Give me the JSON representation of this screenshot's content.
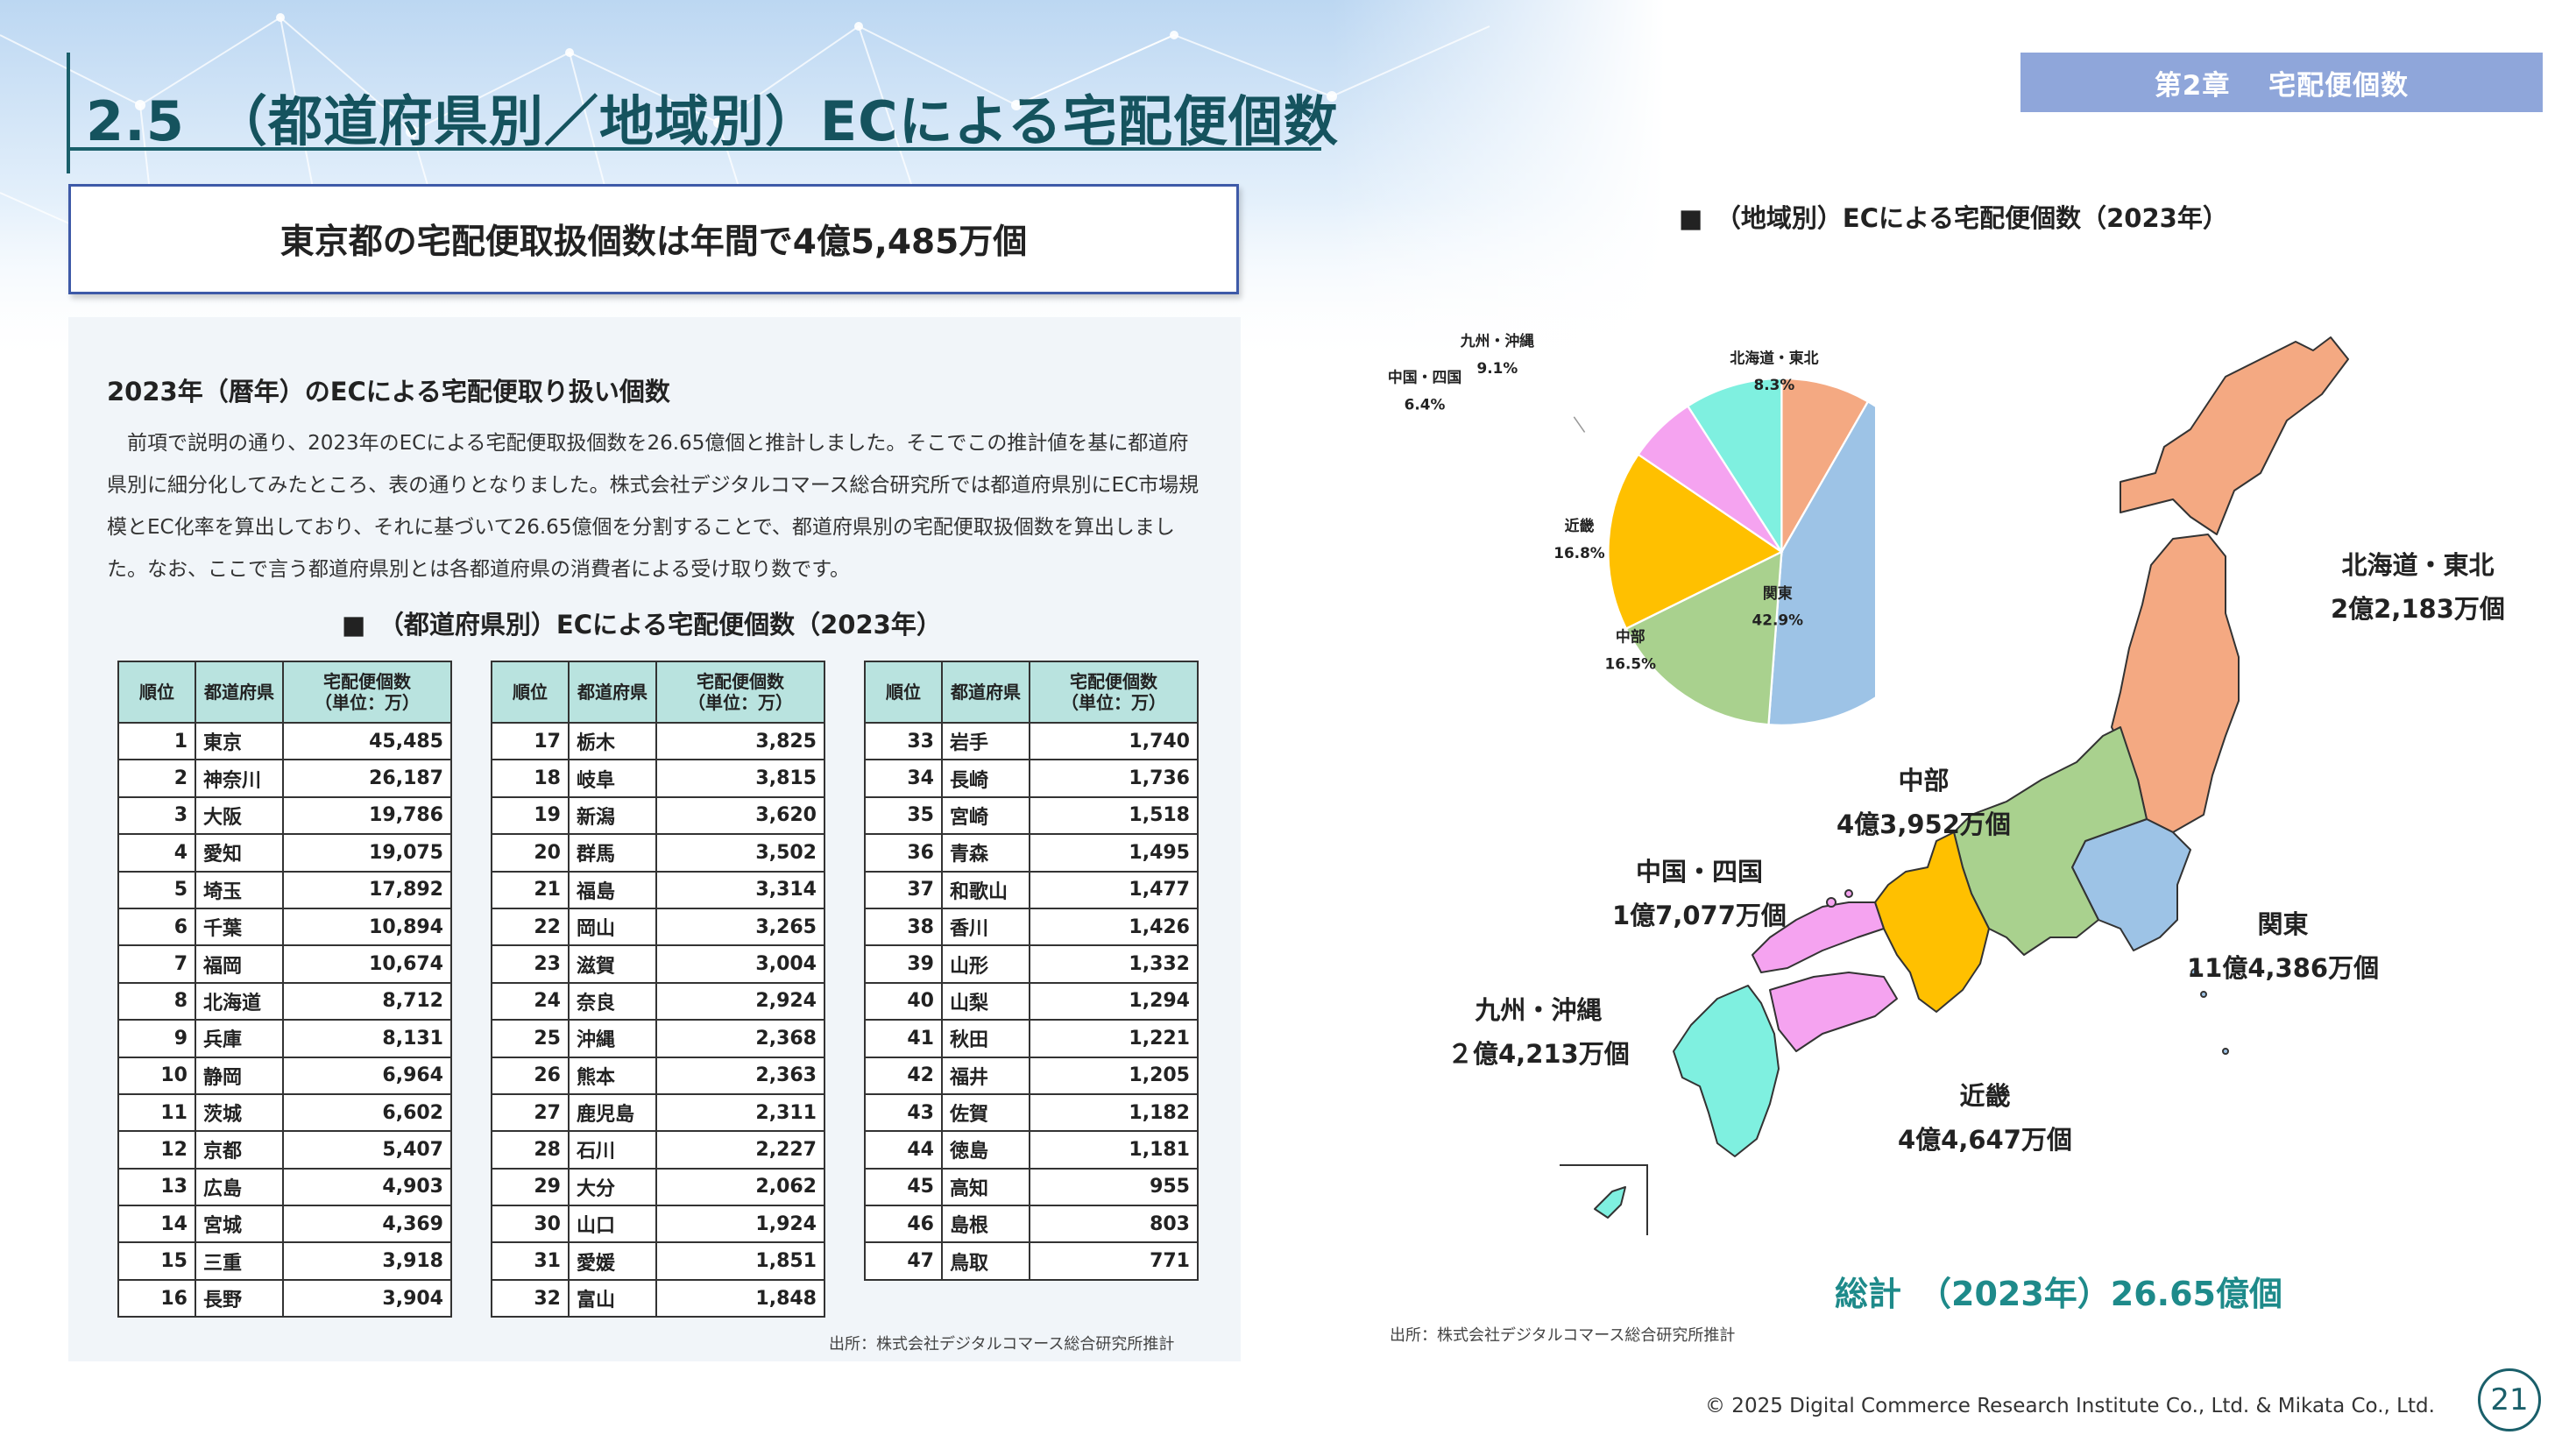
{
  "header": {
    "title": "2.5　（都道府県別／地域別）ECによる宅配便個数",
    "chapter": "第2章　 宅配便個数"
  },
  "headline": "東京都の宅配便取扱個数は年間で4億5,485万個",
  "section": {
    "heading": "2023年（暦年）のECによる宅配便取り扱い個数",
    "body": "前項で説明の通り、2023年のECによる宅配便取扱個数を26.65億個と推計しました。そこでこの推計値を基に都道府県別に細分化してみたところ、表の通りとなりました。株式会社デジタルコマース総合研究所では都道府県別にEC市場規模とEC化率を算出しており、それに基づいて26.65億個を分割することで、都道府県別の宅配便取扱個数を算出しました。なお、ここで言う都道府県別とは各都道府県の消費者による受け取り数です。"
  },
  "table": {
    "caption": "■　（都道府県別）ECによる宅配便個数（2023年）",
    "headers": {
      "rank": "順位",
      "pref": "都道府県",
      "value_1": "宅配便個数",
      "value_2": "（単位：万）"
    },
    "rows": [
      {
        "rank": "1",
        "pref": "東京",
        "value": "45,485"
      },
      {
        "rank": "2",
        "pref": "神奈川",
        "value": "26,187"
      },
      {
        "rank": "3",
        "pref": "大阪",
        "value": "19,786"
      },
      {
        "rank": "4",
        "pref": "愛知",
        "value": "19,075"
      },
      {
        "rank": "5",
        "pref": "埼玉",
        "value": "17,892"
      },
      {
        "rank": "6",
        "pref": "千葉",
        "value": "10,894"
      },
      {
        "rank": "7",
        "pref": "福岡",
        "value": "10,674"
      },
      {
        "rank": "8",
        "pref": "北海道",
        "value": "8,712"
      },
      {
        "rank": "9",
        "pref": "兵庫",
        "value": "8,131"
      },
      {
        "rank": "10",
        "pref": "静岡",
        "value": "6,964"
      },
      {
        "rank": "11",
        "pref": "茨城",
        "value": "6,602"
      },
      {
        "rank": "12",
        "pref": "京都",
        "value": "5,407"
      },
      {
        "rank": "13",
        "pref": "広島",
        "value": "4,903"
      },
      {
        "rank": "14",
        "pref": "宮城",
        "value": "4,369"
      },
      {
        "rank": "15",
        "pref": "三重",
        "value": "3,918"
      },
      {
        "rank": "16",
        "pref": "長野",
        "value": "3,904"
      },
      {
        "rank": "17",
        "pref": "栃木",
        "value": "3,825"
      },
      {
        "rank": "18",
        "pref": "岐阜",
        "value": "3,815"
      },
      {
        "rank": "19",
        "pref": "新潟",
        "value": "3,620"
      },
      {
        "rank": "20",
        "pref": "群馬",
        "value": "3,502"
      },
      {
        "rank": "21",
        "pref": "福島",
        "value": "3,314"
      },
      {
        "rank": "22",
        "pref": "岡山",
        "value": "3,265"
      },
      {
        "rank": "23",
        "pref": "滋賀",
        "value": "3,004"
      },
      {
        "rank": "24",
        "pref": "奈良",
        "value": "2,924"
      },
      {
        "rank": "25",
        "pref": "沖縄",
        "value": "2,368"
      },
      {
        "rank": "26",
        "pref": "熊本",
        "value": "2,363"
      },
      {
        "rank": "27",
        "pref": "鹿児島",
        "value": "2,311"
      },
      {
        "rank": "28",
        "pref": "石川",
        "value": "2,227"
      },
      {
        "rank": "29",
        "pref": "大分",
        "value": "2,062"
      },
      {
        "rank": "30",
        "pref": "山口",
        "value": "1,924"
      },
      {
        "rank": "31",
        "pref": "愛媛",
        "value": "1,851"
      },
      {
        "rank": "32",
        "pref": "富山",
        "value": "1,848"
      },
      {
        "rank": "33",
        "pref": "岩手",
        "value": "1,740"
      },
      {
        "rank": "34",
        "pref": "長崎",
        "value": "1,736"
      },
      {
        "rank": "35",
        "pref": "宮崎",
        "value": "1,518"
      },
      {
        "rank": "36",
        "pref": "青森",
        "value": "1,495"
      },
      {
        "rank": "37",
        "pref": "和歌山",
        "value": "1,477"
      },
      {
        "rank": "38",
        "pref": "香川",
        "value": "1,426"
      },
      {
        "rank": "39",
        "pref": "山形",
        "value": "1,332"
      },
      {
        "rank": "40",
        "pref": "山梨",
        "value": "1,294"
      },
      {
        "rank": "41",
        "pref": "秋田",
        "value": "1,221"
      },
      {
        "rank": "42",
        "pref": "福井",
        "value": "1,205"
      },
      {
        "rank": "43",
        "pref": "佐賀",
        "value": "1,182"
      },
      {
        "rank": "44",
        "pref": "徳島",
        "value": "1,181"
      },
      {
        "rank": "45",
        "pref": "高知",
        "value": "955"
      },
      {
        "rank": "46",
        "pref": "島根",
        "value": "803"
      },
      {
        "rank": "47",
        "pref": "鳥取",
        "value": "771"
      }
    ],
    "source": "出所：株式会社デジタルコマース総合研究所推計"
  },
  "chart_data": {
    "type": "pie",
    "title": "■　（地域別）ECによる宅配便個数（2023年）",
    "slices": [
      {
        "label": "北海道・東北",
        "value": 8.3,
        "display": "8.3%",
        "color": "#f4a982"
      },
      {
        "label": "関東",
        "value": 42.9,
        "display": "42.9%",
        "color": "#9dc3e6"
      },
      {
        "label": "中部",
        "value": 16.5,
        "display": "16.5%",
        "color": "#a9d18e"
      },
      {
        "label": "近畿",
        "value": 16.8,
        "display": "16.8%",
        "color": "#ffc000"
      },
      {
        "label": "中国・四国",
        "value": 6.4,
        "display": "6.4%",
        "color": "#f5a3f0"
      },
      {
        "label": "九州・沖縄",
        "value": 9.1,
        "display": "9.1%",
        "color": "#7ff0e0"
      }
    ],
    "start_angle_deg": 0,
    "direction": "clockwise",
    "source": "出所：株式会社デジタルコマース総合研究所推計"
  },
  "map": {
    "regions": [
      {
        "name": "北海道・東北",
        "amount": "2億2,183万個",
        "color": "#f4a982"
      },
      {
        "name": "関東",
        "amount": "11億4,386万個",
        "color": "#9dc3e6"
      },
      {
        "name": "中部",
        "amount": "4億3,952万個",
        "color": "#a9d18e"
      },
      {
        "name": "近畿",
        "amount": "4億4,647万個",
        "color": "#ffc000"
      },
      {
        "name": "中国・四国",
        "amount": "1億7,077万個",
        "color": "#f5a3f0"
      },
      {
        "name": "九州・沖縄",
        "amount": "２億4,213万個",
        "color": "#7ff0e0"
      }
    ],
    "total": "総計　（2023年）26.65億個"
  },
  "footer": {
    "copyright": "© 2025 Digital Commerce Research Institute Co., Ltd. & Mikata Co., Ltd.",
    "page": "21"
  },
  "colors": {
    "accent": "#1a5f6a",
    "badge": "#8fa6da",
    "headline_border": "#3e5aa8",
    "table_header": "#b9e3df",
    "total": "#1e8a8a"
  }
}
